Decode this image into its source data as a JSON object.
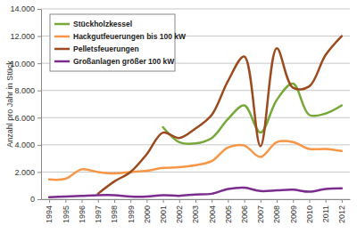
{
  "chart_data": {
    "type": "line",
    "y_label": "Anzahl pro Jahr in Stück",
    "categories": [
      "1994",
      "1995",
      "1996",
      "1997",
      "1998",
      "1999",
      "2000",
      "2001",
      "2002",
      "2003",
      "2004",
      "2005",
      "2006",
      "2007",
      "2008",
      "2009",
      "2010",
      "2011",
      "2012"
    ],
    "series": [
      {
        "name": "Stückholzkessel",
        "color": "#77a83a",
        "values": [
          null,
          null,
          null,
          null,
          null,
          null,
          null,
          5300,
          4200,
          4100,
          4500,
          5900,
          6900,
          4900,
          7300,
          8500,
          6200,
          6300,
          6900
        ]
      },
      {
        "name": "Hackgutfeuerungen bis 100 kW",
        "color": "#f79646",
        "values": [
          1450,
          1500,
          2200,
          2000,
          1900,
          2000,
          2100,
          2300,
          2350,
          2500,
          2800,
          3800,
          3950,
          3100,
          4200,
          4200,
          3700,
          3700,
          3550
        ]
      },
      {
        "name": "Pelletsfeuerungen",
        "color": "#9c4a1e",
        "values": [
          null,
          null,
          null,
          400,
          1300,
          2000,
          3300,
          4900,
          4500,
          5200,
          6200,
          8700,
          10500,
          3900,
          11100,
          8200,
          8300,
          10600,
          12000
        ]
      },
      {
        "name": "Großanlagen größer 100 kW",
        "color": "#7b2c8e",
        "values": [
          150,
          200,
          250,
          300,
          300,
          200,
          200,
          300,
          250,
          350,
          400,
          750,
          850,
          600,
          650,
          700,
          550,
          750,
          800
        ]
      }
    ],
    "ylim": [
      0,
      14000
    ],
    "yticks": [
      0,
      {
        "value": 2000,
        "label": "2.000"
      },
      {
        "value": 4000,
        "label": "4.000"
      },
      {
        "value": 6000,
        "label": "6.000"
      },
      {
        "value": 8000,
        "label": "8.000"
      },
      {
        "value": 10000,
        "label": "10.000"
      },
      {
        "value": 12000,
        "label": "12.000"
      },
      {
        "value": 14000,
        "label": "14.000"
      }
    ],
    "grid": true,
    "legend": "top-left",
    "line_style": "smooth"
  }
}
